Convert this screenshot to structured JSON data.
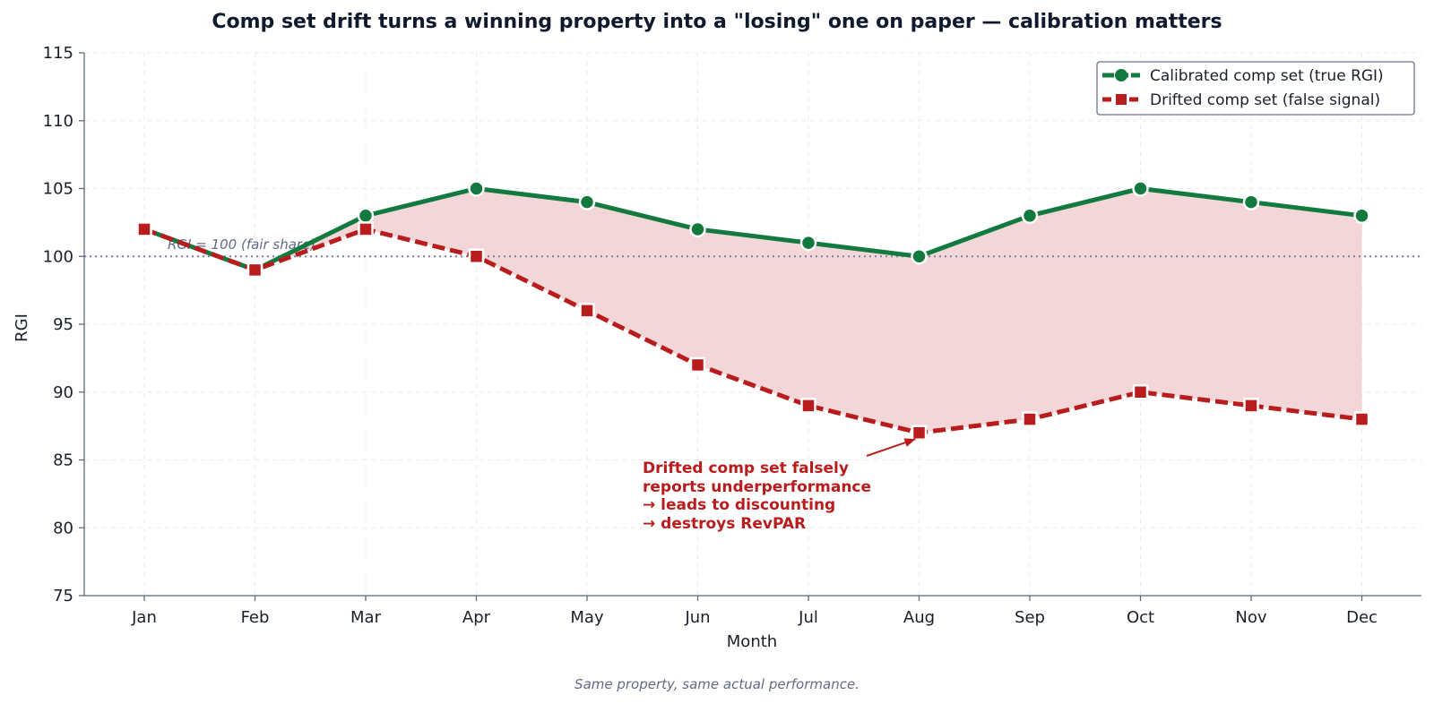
{
  "chart_data": {
    "type": "line",
    "title": "Comp set drift turns a winning property into a \"losing\" one on paper — calibration matters",
    "xlabel": "Month",
    "ylabel": "RGI",
    "categories": [
      "Jan",
      "Feb",
      "Mar",
      "Apr",
      "May",
      "Jun",
      "Jul",
      "Aug",
      "Sep",
      "Oct",
      "Nov",
      "Dec"
    ],
    "ylim": [
      75,
      115
    ],
    "yticks": [
      75,
      80,
      85,
      90,
      95,
      100,
      105,
      110,
      115
    ],
    "grid": true,
    "legend_position": "top-right",
    "series": [
      {
        "name": "Calibrated comp set (true RGI)",
        "values": [
          102,
          99,
          103,
          105,
          104,
          102,
          101,
          100,
          103,
          105,
          104,
          103
        ],
        "color": "#127a3e",
        "line_style": "solid",
        "marker": "circle"
      },
      {
        "name": "Drifted comp set (false signal)",
        "values": [
          102,
          99,
          102,
          100,
          96,
          92,
          89,
          87,
          88,
          90,
          89,
          88
        ],
        "color": "#b81c1c",
        "line_style": "dashed",
        "marker": "square"
      }
    ],
    "fill_between": {
      "color": "#f2d4d6"
    },
    "reference_line": {
      "y": 100,
      "label": "RGI = 100 (fair share)",
      "color": "#7a7f9a"
    },
    "annotation": {
      "lines": [
        "Drifted comp set falsely",
        "reports underperformance",
        "→ leads to discounting",
        "→ destroys RevPAR"
      ],
      "target_category": "Aug",
      "target_value": 87,
      "color": "#b81c1c"
    },
    "footnote": "Same property, same actual performance."
  }
}
